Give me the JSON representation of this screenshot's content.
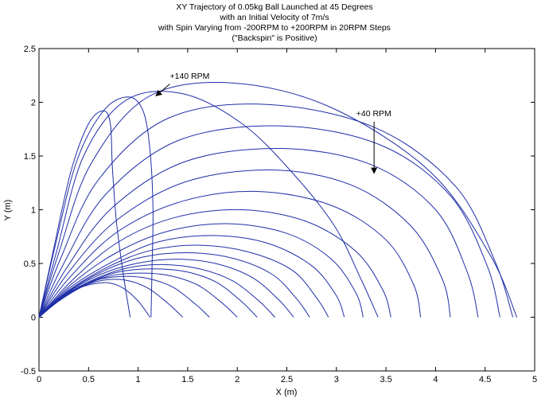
{
  "chart_data": {
    "type": "line",
    "title_lines": [
      "XY Trajectory of 0.05kg Ball Launched at 45 Degrees",
      "with an Initial Velocity of 7m/s",
      "with Spin Varying from -200RPM to +200RPM in 20RPM Steps",
      "(\"Backspin\" is Positive)"
    ],
    "xlabel": "X (m)",
    "ylabel": "Y (m)",
    "xlim": [
      0,
      5
    ],
    "ylim": [
      -0.5,
      2.5
    ],
    "xticks": [
      "0",
      "0.5",
      "1",
      "1.5",
      "2",
      "2.5",
      "3",
      "3.5",
      "4",
      "4.5",
      "5"
    ],
    "yticks": [
      "-0.5",
      "0",
      "0.5",
      "1",
      "1.5",
      "2",
      "2.5"
    ],
    "grid": false,
    "line_color": "#1f2ea8",
    "series": [
      {
        "rpm": -200,
        "x": [
          0,
          0.12,
          0.25,
          0.4,
          0.55,
          0.7,
          0.85,
          1.0,
          1.12
        ],
        "y": [
          0,
          0.1,
          0.2,
          0.27,
          0.31,
          0.32,
          0.27,
          0.15,
          0
        ]
      },
      {
        "rpm": -180,
        "x": [
          0,
          0.15,
          0.3,
          0.5,
          0.7,
          0.9,
          1.1,
          1.3,
          1.45
        ],
        "y": [
          0,
          0.12,
          0.23,
          0.31,
          0.35,
          0.34,
          0.27,
          0.13,
          0
        ]
      },
      {
        "rpm": -160,
        "x": [
          0,
          0.18,
          0.38,
          0.6,
          0.85,
          1.1,
          1.35,
          1.58,
          1.72
        ],
        "y": [
          0,
          0.14,
          0.26,
          0.35,
          0.38,
          0.36,
          0.28,
          0.12,
          0
        ]
      },
      {
        "rpm": -140,
        "x": [
          0,
          0.2,
          0.45,
          0.7,
          1.0,
          1.3,
          1.6,
          1.85,
          2.0
        ],
        "y": [
          0,
          0.15,
          0.29,
          0.38,
          0.41,
          0.39,
          0.3,
          0.13,
          0
        ]
      },
      {
        "rpm": -120,
        "x": [
          0,
          0.22,
          0.5,
          0.8,
          1.15,
          1.5,
          1.8,
          2.05,
          2.2
        ],
        "y": [
          0,
          0.17,
          0.32,
          0.42,
          0.45,
          0.42,
          0.32,
          0.14,
          0
        ]
      },
      {
        "rpm": -100,
        "x": [
          0,
          0.24,
          0.55,
          0.9,
          1.25,
          1.62,
          1.95,
          2.22,
          2.38
        ],
        "y": [
          0,
          0.19,
          0.35,
          0.46,
          0.49,
          0.45,
          0.34,
          0.15,
          0
        ]
      },
      {
        "rpm": -80,
        "x": [
          0,
          0.26,
          0.6,
          0.98,
          1.38,
          1.78,
          2.15,
          2.42,
          2.57
        ],
        "y": [
          0,
          0.21,
          0.39,
          0.5,
          0.54,
          0.5,
          0.37,
          0.16,
          0
        ]
      },
      {
        "rpm": -60,
        "x": [
          0,
          0.28,
          0.65,
          1.05,
          1.5,
          1.95,
          2.35,
          2.6,
          2.73
        ],
        "y": [
          0,
          0.23,
          0.43,
          0.56,
          0.6,
          0.55,
          0.4,
          0.17,
          0
        ]
      },
      {
        "rpm": -40,
        "x": [
          0,
          0.3,
          0.7,
          1.12,
          1.6,
          2.1,
          2.55,
          2.8,
          2.92
        ],
        "y": [
          0,
          0.25,
          0.47,
          0.62,
          0.67,
          0.61,
          0.44,
          0.18,
          0
        ]
      },
      {
        "rpm": -20,
        "x": [
          0,
          0.32,
          0.75,
          1.2,
          1.75,
          2.3,
          2.75,
          3.0,
          3.08
        ],
        "y": [
          0,
          0.28,
          0.52,
          0.7,
          0.76,
          0.69,
          0.48,
          0.2,
          0
        ]
      },
      {
        "rpm": 0,
        "x": [
          0,
          0.33,
          0.78,
          1.3,
          1.9,
          2.5,
          2.95,
          3.2,
          3.27
        ],
        "y": [
          0,
          0.31,
          0.6,
          0.8,
          0.87,
          0.78,
          0.54,
          0.22,
          0
        ]
      },
      {
        "rpm": 20,
        "x": [
          0,
          0.33,
          0.8,
          1.38,
          2.05,
          2.7,
          3.2,
          3.47,
          3.55
        ],
        "y": [
          0,
          0.34,
          0.7,
          0.93,
          1.0,
          0.89,
          0.61,
          0.25,
          0
        ]
      },
      {
        "rpm": 40,
        "x": [
          0,
          0.32,
          0.8,
          1.45,
          2.2,
          2.95,
          3.5,
          3.78,
          3.85
        ],
        "y": [
          0,
          0.38,
          0.8,
          1.08,
          1.17,
          1.04,
          0.72,
          0.3,
          0
        ]
      },
      {
        "rpm": 60,
        "x": [
          0,
          0.3,
          0.78,
          1.48,
          2.35,
          3.15,
          3.75,
          4.07,
          4.15
        ],
        "y": [
          0,
          0.42,
          0.9,
          1.26,
          1.37,
          1.23,
          0.85,
          0.35,
          0
        ]
      },
      {
        "rpm": 80,
        "x": [
          0,
          0.28,
          0.74,
          1.48,
          2.45,
          3.35,
          4.0,
          4.32,
          4.43
        ],
        "y": [
          0,
          0.46,
          1.02,
          1.45,
          1.57,
          1.42,
          1.0,
          0.42,
          0
        ]
      },
      {
        "rpm": 100,
        "x": [
          0,
          0.25,
          0.68,
          1.42,
          2.45,
          3.45,
          4.15,
          4.52,
          4.65
        ],
        "y": [
          0,
          0.5,
          1.15,
          1.65,
          1.78,
          1.6,
          1.13,
          0.48,
          0
        ]
      },
      {
        "rpm": 120,
        "x": [
          0,
          0.22,
          0.6,
          1.3,
          2.3,
          3.4,
          4.2,
          4.6,
          4.78
        ],
        "y": [
          0,
          0.55,
          1.28,
          1.85,
          1.98,
          1.76,
          1.22,
          0.52,
          0
        ]
      },
      {
        "rpm": 140,
        "x": [
          0,
          0.2,
          0.52,
          1.1,
          1.95,
          2.95,
          3.95,
          4.55,
          4.82
        ],
        "y": [
          0,
          0.6,
          1.42,
          2.05,
          2.18,
          1.95,
          1.35,
          0.58,
          0
        ]
      },
      {
        "rpm": 160,
        "x": [
          0,
          0.18,
          0.45,
          0.88,
          1.45,
          2.05,
          2.55,
          2.98,
          3.25,
          3.42
        ],
        "y": [
          0,
          0.62,
          1.5,
          2.02,
          2.08,
          1.8,
          1.35,
          0.85,
          0.35,
          0
        ]
      },
      {
        "rpm": 180,
        "x": [
          0,
          0.16,
          0.38,
          0.65,
          0.9,
          1.05,
          1.12,
          1.15,
          1.14,
          1.13
        ],
        "y": [
          0,
          0.65,
          1.45,
          1.92,
          2.05,
          1.92,
          1.55,
          1.0,
          0.45,
          0
        ]
      },
      {
        "rpm": 200,
        "x": [
          0,
          0.14,
          0.32,
          0.5,
          0.65,
          0.72,
          0.74,
          0.78,
          0.85,
          0.92
        ],
        "y": [
          0,
          0.6,
          1.35,
          1.8,
          1.92,
          1.8,
          1.4,
          0.9,
          0.4,
          0
        ]
      }
    ],
    "annotations": [
      {
        "text": "+140 RPM",
        "text_x": 1.32,
        "text_y": 2.22,
        "arrow_from": [
          1.32,
          2.17
        ],
        "arrow_to": [
          1.18,
          2.06
        ]
      },
      {
        "text": "+40 RPM",
        "text_x": 3.2,
        "text_y": 1.87,
        "arrow_from": [
          3.38,
          1.82
        ],
        "arrow_to": [
          3.38,
          1.34
        ]
      }
    ]
  }
}
